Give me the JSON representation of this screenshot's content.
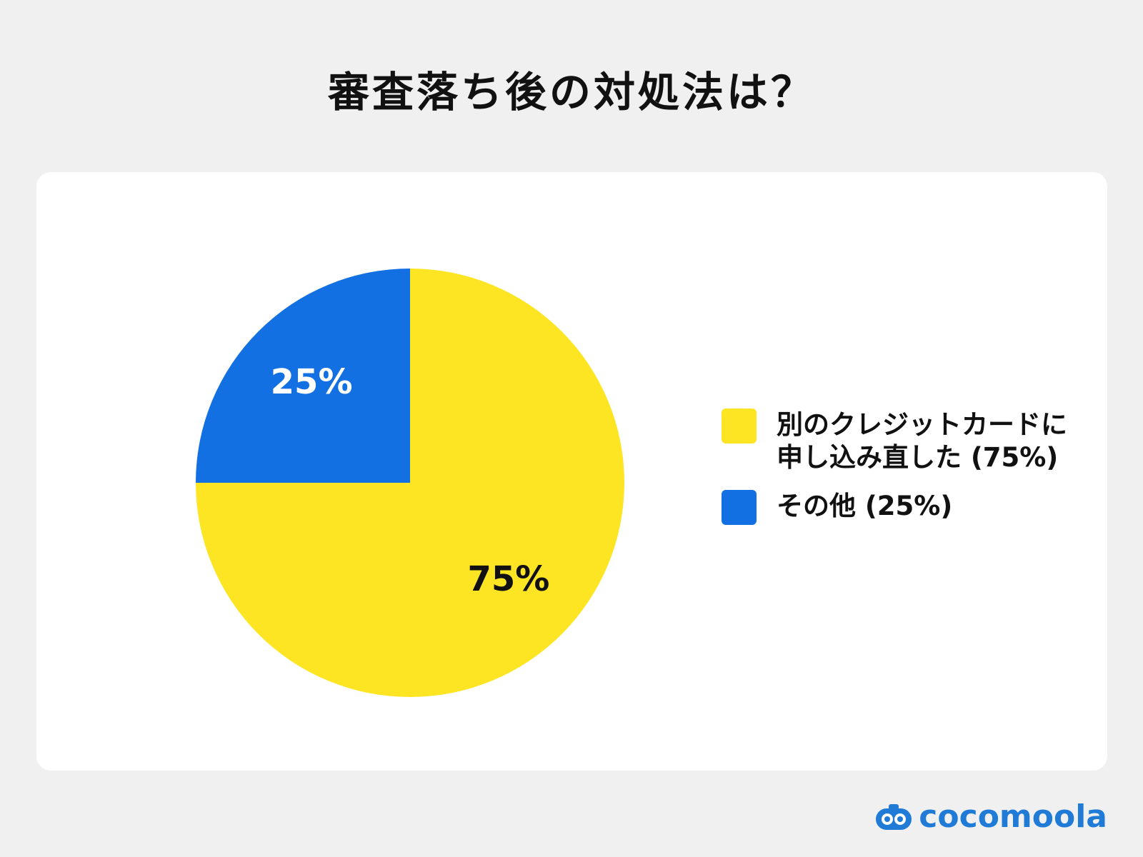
{
  "chart_data": {
    "type": "pie",
    "title": "審査落ち後の対処法は？",
    "categories": [
      "別のクレジットカードに申し込み直した (75%)",
      "その他 (25%)"
    ],
    "values": [
      75,
      25
    ],
    "value_labels": [
      "75%",
      "25%"
    ],
    "colors": [
      "#FDE523",
      "#1270E3"
    ]
  },
  "logo": "cocomoola"
}
